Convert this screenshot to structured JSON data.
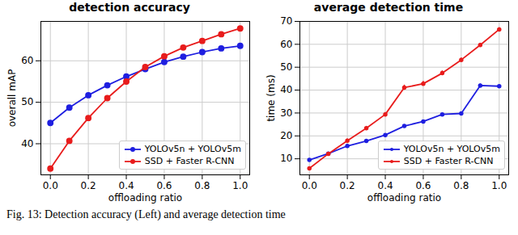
{
  "chart_data": [
    {
      "type": "line",
      "title": "detection accuracy",
      "x_label": "offloading ratio",
      "y_label": "overall mAP",
      "x": [
        0.0,
        0.1,
        0.2,
        0.3,
        0.4,
        0.5,
        0.6,
        0.7,
        0.8,
        0.9,
        1.0
      ],
      "series": [
        {
          "name": "YOLOv5n + YOLOv5m",
          "color": "#1f1fe0",
          "marker": "circle",
          "values": [
            45.0,
            48.7,
            51.7,
            54.1,
            56.2,
            58.0,
            59.7,
            61.0,
            62.1,
            63.0,
            63.6
          ]
        },
        {
          "name": "SSD + Faster R-CNN",
          "color": "#e81c1c",
          "marker": "circle",
          "values": [
            34.0,
            40.7,
            46.2,
            51.0,
            55.0,
            58.5,
            61.1,
            63.2,
            64.8,
            66.4,
            67.8
          ]
        }
      ],
      "xlim": [
        -0.05,
        1.05
      ],
      "xticks": [
        {
          "value": 0,
          "label": "0.0"
        },
        0.2,
        0.4,
        0.6,
        0.8,
        {
          "value": 1,
          "label": "1.0"
        }
      ],
      "ylim": [
        32.5,
        69.5
      ],
      "yticks": [
        40,
        50,
        60
      ],
      "grid": true,
      "legend": "lower right"
    },
    {
      "type": "line",
      "title": "average detection time",
      "x_label": "offloading ratio",
      "y_label": "time (ms)",
      "x": [
        0.0,
        0.1,
        0.2,
        0.3,
        0.4,
        0.5,
        0.6,
        0.7,
        0.8,
        0.9,
        1.0
      ],
      "series": [
        {
          "name": "YOLOv5n + YOLOv5m",
          "color": "#1f1fe0",
          "marker": "point",
          "values": [
            9.5,
            12.3,
            15.6,
            17.8,
            20.4,
            24.3,
            26.3,
            29.4,
            29.8,
            42.0,
            41.7
          ],
          "error": [
            0.5,
            0.4,
            0.6,
            0.5,
            0.5,
            0.6,
            0.5,
            0.5,
            0.5,
            0.7,
            0.6
          ]
        },
        {
          "name": "SSD + Faster R-CNN",
          "color": "#e81c1c",
          "marker": "point",
          "values": [
            5.8,
            12.2,
            17.9,
            23.4,
            29.4,
            41.1,
            42.8,
            47.4,
            53.2,
            59.7,
            66.5
          ],
          "error": [
            0.5,
            0.5,
            0.8,
            0.8,
            0.8,
            1.1,
            1.0,
            1.0,
            0.8,
            0.8,
            0.8
          ]
        }
      ],
      "xlim": [
        -0.05,
        1.05
      ],
      "xticks": [
        {
          "value": 0,
          "label": "0.0"
        },
        0.2,
        0.4,
        0.6,
        0.8,
        {
          "value": 1,
          "label": "1.0"
        }
      ],
      "ylim": [
        3,
        70
      ],
      "yticks": [
        10,
        20,
        30,
        40,
        50,
        60,
        70
      ],
      "grid": true,
      "legend": "lower right"
    }
  ],
  "caption": "Fig. 13: Detection accuracy (Left) and average detection time"
}
